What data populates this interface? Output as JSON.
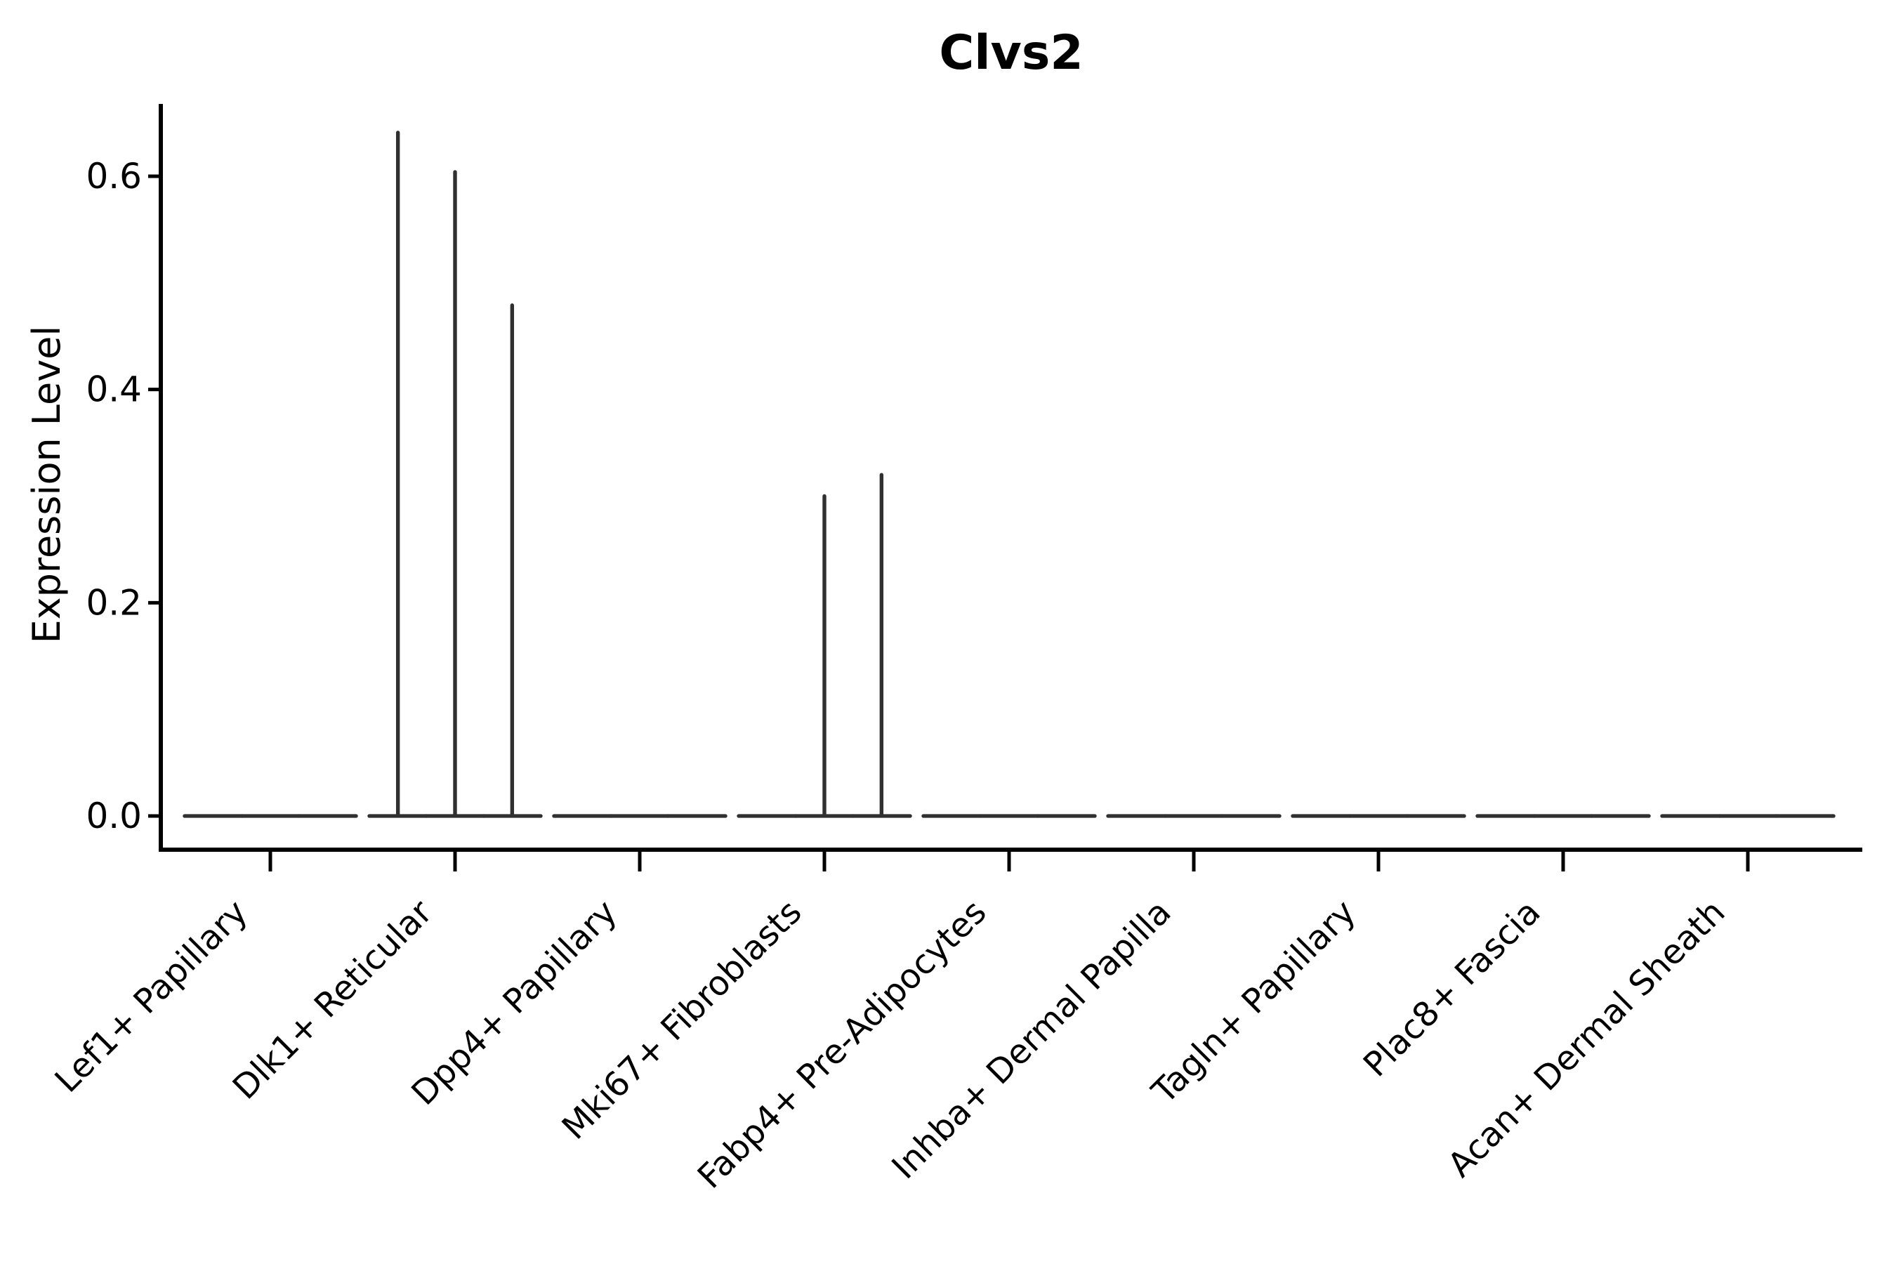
{
  "figure": {
    "background": "#ffffff"
  },
  "chart_data": {
    "type": "violin",
    "title": "Clvs2",
    "xlabel": "",
    "ylabel": "Expression Level",
    "categories": [
      "Lef1+ Papillary",
      "Dlk1+ Reticular",
      "Dpp4+ Papillary",
      "Mki67+ Fibroblasts",
      "Fabp4+ Pre-Adipocytes",
      "Inhba+ Dermal Papilla",
      "Tagln+ Papillary",
      "Plac8+ Fascia",
      "Acan+ Dermal Sheath"
    ],
    "violins_per_category": 3,
    "series_description": "Each category holds 3 adjacent violins; nearly all mass is at 0 so violins collapse to flat lines, some with a thin spike to their max value",
    "spike_maxima": [
      [
        0,
        0,
        0
      ],
      [
        0.641,
        0.604,
        0.479
      ],
      [
        0,
        0,
        0
      ],
      [
        0,
        0.3,
        0.32
      ],
      [
        0,
        0,
        0
      ],
      [
        0,
        0,
        0
      ],
      [
        0,
        0,
        0
      ],
      [
        0,
        0,
        0
      ],
      [
        0,
        0,
        0
      ]
    ],
    "ytick_labels": [
      "0.0",
      "0.2",
      "0.4",
      "0.6"
    ],
    "ytick_values": [
      0.0,
      0.2,
      0.4,
      0.6
    ],
    "ylim": [
      -0.034,
      0.668
    ],
    "grid": false,
    "legend": null,
    "xtick_rotation_degrees": 45,
    "colors": {
      "violin_stroke": "#303030",
      "axis": "#000000",
      "text": "#000000",
      "background": "#ffffff"
    }
  }
}
